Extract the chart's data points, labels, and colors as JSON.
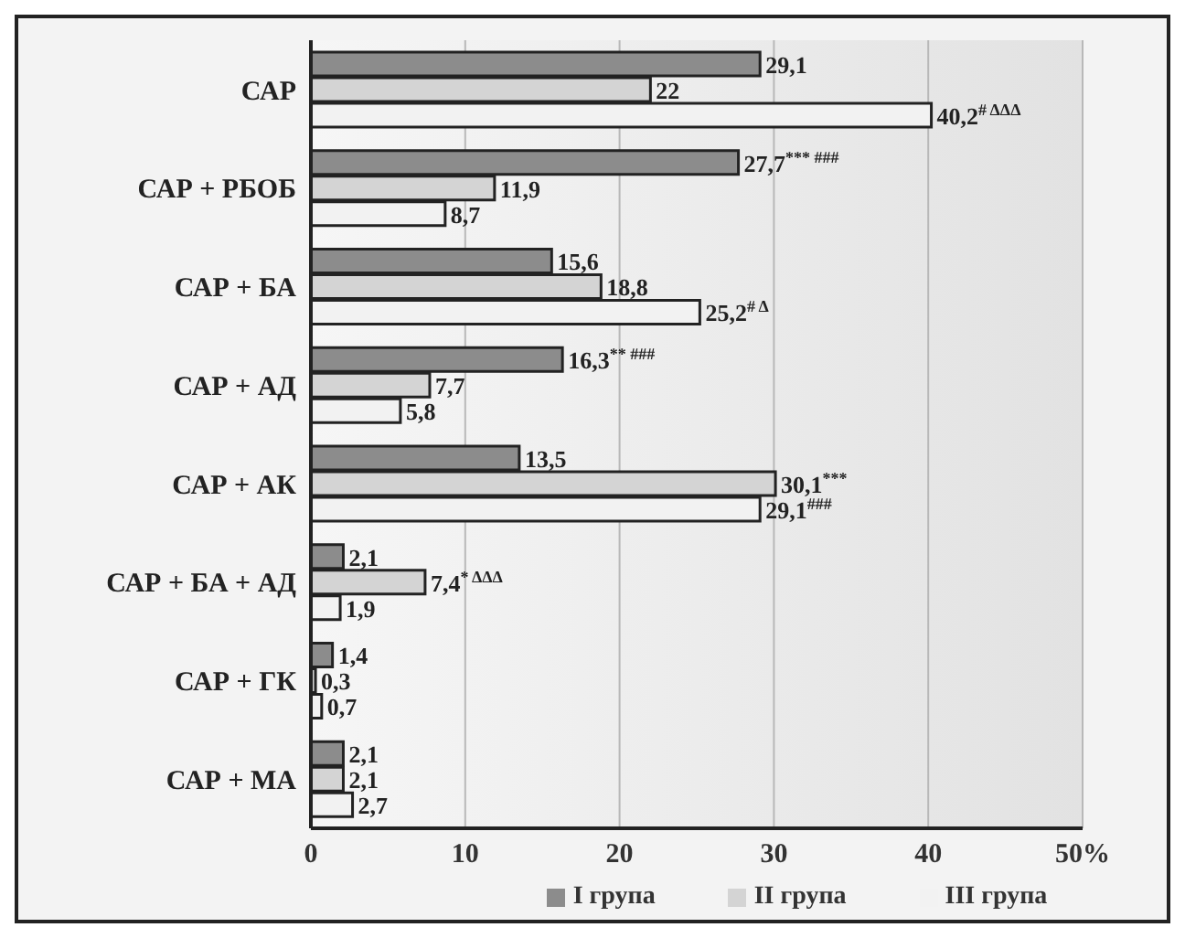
{
  "chart_data": {
    "type": "bar",
    "orientation": "horizontal",
    "categories": [
      "САР",
      "САР + РБОБ",
      "САР + БА",
      "САР + АД",
      "САР + АК",
      "САР + БА + АД",
      "САР + ГК",
      "САР + МА"
    ],
    "series": [
      {
        "name": "I група",
        "color": "#8c8c8c",
        "values": [
          29.1,
          27.7,
          15.6,
          16.3,
          13.5,
          2.1,
          1.4,
          2.1
        ],
        "value_labels": [
          "29,1",
          "27,7$^{*** ###}$",
          "15,6",
          "16,3$^{** ###}$",
          "13,5",
          "2,1",
          "1,4",
          "2,1"
        ]
      },
      {
        "name": "II група",
        "color": "#d4d4d4",
        "values": [
          22,
          11.9,
          18.8,
          7.7,
          30.1,
          7.4,
          0.3,
          2.1
        ],
        "value_labels": [
          "22",
          "11,9",
          "18,8",
          "7,7",
          "30,1$^{***}$",
          "7,4$^{* ΔΔΔ}$",
          "0,3",
          "2,1"
        ]
      },
      {
        "name": "III група",
        "color": "#f2f2f2",
        "values": [
          40.2,
          8.7,
          25.2,
          5.8,
          29.1,
          1.9,
          0.7,
          2.7
        ],
        "value_labels": [
          "40,2$^{# ΔΔΔ}$",
          "8,7",
          "25,2$^{# Δ}$",
          "5,8",
          "29,1$^{###}$",
          "1,9",
          "0,7",
          "2,7"
        ]
      }
    ],
    "xlim": [
      0,
      50
    ],
    "xticks": [
      0,
      10,
      20,
      30,
      40,
      {
        "value": 50,
        "label": "50%"
      }
    ],
    "grid": "x",
    "legend": "bottom"
  }
}
